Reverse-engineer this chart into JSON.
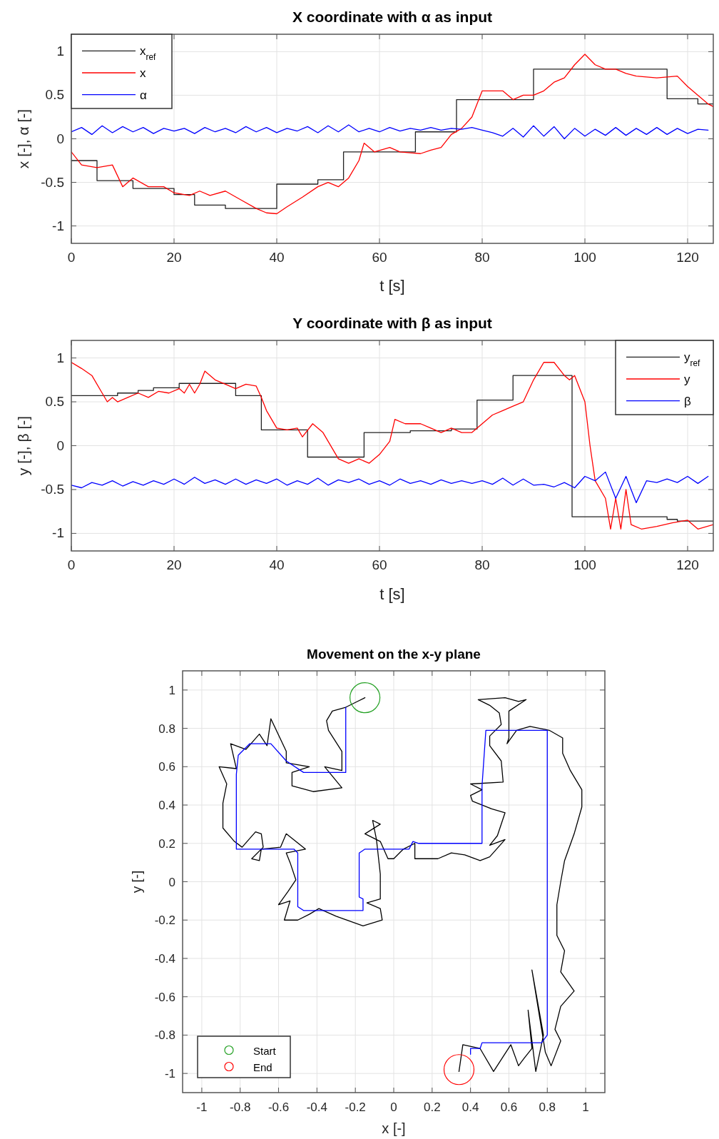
{
  "chart_data": [
    {
      "type": "line",
      "title": "X coordinate with α as input",
      "xlabel": "t [s]",
      "ylabel": "x [-], α [-]",
      "xlim": [
        0,
        125
      ],
      "ylim": [
        -1.2,
        1.2
      ],
      "xticks": [
        0,
        20,
        40,
        60,
        80,
        100,
        120
      ],
      "yticks": [
        -1,
        -0.5,
        0,
        0.5,
        1
      ],
      "grid": true,
      "legend": "top left",
      "series": [
        {
          "name": "x$_{ref}$",
          "type": "step",
          "color": "#222222",
          "x": [
            0,
            5,
            12,
            20,
            24,
            30,
            40,
            48,
            53,
            67,
            75,
            90,
            116,
            122,
            125
          ],
          "values": [
            -0.25,
            -0.48,
            -0.57,
            -0.64,
            -0.76,
            -0.8,
            -0.52,
            -0.47,
            -0.15,
            0.08,
            0.45,
            0.8,
            0.46,
            0.4,
            0.4
          ]
        },
        {
          "name": "x",
          "color": "#ff0000",
          "x": [
            0,
            2,
            5,
            8,
            10,
            12,
            15,
            18,
            20,
            23,
            25,
            27,
            30,
            33,
            36,
            38,
            40,
            42,
            45,
            48,
            50,
            52,
            54,
            56,
            57,
            59,
            62,
            64,
            66,
            68,
            70,
            72,
            74,
            76,
            78,
            80,
            82,
            84,
            86,
            88,
            90,
            92,
            94,
            96,
            98,
            100,
            102,
            104,
            106,
            108,
            110,
            114,
            118,
            120,
            122,
            124,
            125
          ],
          "values": [
            -0.15,
            -0.3,
            -0.33,
            -0.3,
            -0.55,
            -0.45,
            -0.55,
            -0.55,
            -0.62,
            -0.65,
            -0.6,
            -0.65,
            -0.6,
            -0.7,
            -0.8,
            -0.85,
            -0.86,
            -0.78,
            -0.67,
            -0.55,
            -0.5,
            -0.55,
            -0.45,
            -0.25,
            -0.05,
            -0.15,
            -0.1,
            -0.15,
            -0.16,
            -0.17,
            -0.13,
            -0.1,
            0.05,
            0.12,
            0.25,
            0.55,
            0.55,
            0.55,
            0.45,
            0.5,
            0.5,
            0.55,
            0.65,
            0.7,
            0.85,
            0.97,
            0.85,
            0.8,
            0.8,
            0.75,
            0.72,
            0.7,
            0.72,
            0.6,
            0.5,
            0.4,
            0.37
          ]
        },
        {
          "name": "α",
          "color": "#0000ff",
          "x": [
            0,
            2,
            4,
            6,
            8,
            10,
            12,
            14,
            16,
            18,
            20,
            22,
            24,
            26,
            28,
            30,
            32,
            34,
            36,
            38,
            40,
            42,
            44,
            46,
            48,
            50,
            52,
            54,
            56,
            58,
            60,
            62,
            64,
            66,
            68,
            70,
            72,
            74,
            76,
            78,
            80,
            82,
            84,
            86,
            88,
            90,
            92,
            94,
            96,
            98,
            100,
            102,
            104,
            106,
            108,
            110,
            112,
            114,
            116,
            118,
            120,
            122,
            124
          ],
          "values": [
            0.08,
            0.13,
            0.05,
            0.15,
            0.07,
            0.14,
            0.08,
            0.13,
            0.06,
            0.12,
            0.09,
            0.12,
            0.06,
            0.13,
            0.08,
            0.12,
            0.07,
            0.14,
            0.08,
            0.13,
            0.07,
            0.12,
            0.09,
            0.14,
            0.07,
            0.15,
            0.08,
            0.16,
            0.08,
            0.12,
            0.08,
            0.13,
            0.09,
            0.12,
            0.1,
            0.13,
            0.1,
            0.12,
            0.11,
            0.13,
            0.1,
            0.07,
            0.03,
            0.12,
            0.02,
            0.15,
            0.03,
            0.14,
            0.0,
            0.12,
            0.03,
            0.11,
            0.04,
            0.13,
            0.04,
            0.12,
            0.05,
            0.13,
            0.05,
            0.12,
            0.06,
            0.11,
            0.1
          ]
        }
      ]
    },
    {
      "type": "line",
      "title": "Y coordinate with β as input",
      "xlabel": "t [s]",
      "ylabel": "y [-], β [-]",
      "xlim": [
        0,
        125
      ],
      "ylim": [
        -1.2,
        1.2
      ],
      "xticks": [
        0,
        20,
        40,
        60,
        80,
        100,
        120
      ],
      "yticks": [
        -1,
        -0.5,
        0,
        0.5,
        1
      ],
      "grid": true,
      "legend": "top right",
      "series": [
        {
          "name": "y$_{ref}$",
          "type": "step",
          "color": "#222222",
          "x": [
            0,
            9,
            13,
            16,
            21,
            32,
            37,
            46,
            57,
            66,
            74,
            79,
            86,
            97.5,
            116,
            118,
            125
          ],
          "values": [
            0.57,
            0.6,
            0.63,
            0.66,
            0.71,
            0.57,
            0.18,
            -0.13,
            0.15,
            0.17,
            0.19,
            0.52,
            0.8,
            -0.81,
            -0.84,
            -0.86,
            -0.86
          ]
        },
        {
          "name": "y",
          "color": "#ff0000",
          "x": [
            0,
            2,
            4,
            6,
            7,
            8,
            9,
            11,
            13,
            15,
            17,
            19,
            21,
            22,
            23,
            24,
            25,
            26,
            28,
            30,
            32,
            34,
            36,
            37,
            38,
            40,
            42,
            44,
            45,
            47,
            49,
            50,
            52,
            54,
            56,
            58,
            60,
            62,
            63,
            65,
            68,
            70,
            72,
            74,
            76,
            78,
            80,
            82,
            84,
            86,
            88,
            90,
            92,
            94,
            96,
            97,
            98,
            100,
            101,
            102,
            104,
            105,
            106,
            107,
            108,
            109,
            111,
            114,
            117,
            120,
            122,
            125
          ],
          "values": [
            0.95,
            0.88,
            0.8,
            0.6,
            0.5,
            0.55,
            0.5,
            0.55,
            0.6,
            0.55,
            0.62,
            0.6,
            0.65,
            0.6,
            0.7,
            0.6,
            0.7,
            0.85,
            0.75,
            0.7,
            0.65,
            0.7,
            0.68,
            0.55,
            0.4,
            0.2,
            0.18,
            0.2,
            0.1,
            0.25,
            0.15,
            0.05,
            -0.15,
            -0.2,
            -0.15,
            -0.2,
            -0.1,
            0.05,
            0.3,
            0.25,
            0.25,
            0.2,
            0.15,
            0.2,
            0.15,
            0.15,
            0.25,
            0.35,
            0.4,
            0.45,
            0.5,
            0.75,
            0.95,
            0.95,
            0.8,
            0.75,
            0.8,
            0.5,
            0,
            -0.4,
            -0.6,
            -0.95,
            -0.6,
            -0.95,
            -0.5,
            -0.9,
            -0.95,
            -0.92,
            -0.88,
            -0.85,
            -0.95,
            -0.9
          ]
        },
        {
          "name": "β",
          "color": "#0000ff",
          "x": [
            0,
            2,
            4,
            6,
            8,
            10,
            12,
            14,
            16,
            18,
            20,
            22,
            24,
            26,
            28,
            30,
            32,
            34,
            36,
            38,
            40,
            42,
            44,
            46,
            48,
            50,
            52,
            54,
            56,
            58,
            60,
            62,
            64,
            66,
            68,
            70,
            72,
            74,
            76,
            78,
            80,
            82,
            84,
            86,
            88,
            90,
            92,
            94,
            96,
            98,
            100,
            102,
            104,
            106,
            108,
            110,
            112,
            114,
            116,
            118,
            120,
            122,
            124
          ],
          "values": [
            -0.45,
            -0.48,
            -0.42,
            -0.45,
            -0.4,
            -0.46,
            -0.41,
            -0.45,
            -0.4,
            -0.44,
            -0.38,
            -0.44,
            -0.36,
            -0.43,
            -0.39,
            -0.44,
            -0.38,
            -0.44,
            -0.39,
            -0.43,
            -0.38,
            -0.45,
            -0.4,
            -0.44,
            -0.37,
            -0.45,
            -0.39,
            -0.42,
            -0.38,
            -0.44,
            -0.4,
            -0.45,
            -0.38,
            -0.43,
            -0.4,
            -0.44,
            -0.39,
            -0.43,
            -0.4,
            -0.43,
            -0.4,
            -0.44,
            -0.37,
            -0.45,
            -0.38,
            -0.45,
            -0.44,
            -0.47,
            -0.42,
            -0.48,
            -0.35,
            -0.4,
            -0.3,
            -0.6,
            -0.35,
            -0.65,
            -0.4,
            -0.42,
            -0.38,
            -0.42,
            -0.35,
            -0.43,
            -0.35
          ]
        }
      ]
    },
    {
      "type": "line",
      "title": "Movement on the x-y plane",
      "xlabel": "x [-]",
      "ylabel": "y [-]",
      "xlim": [
        -1.1,
        1.1
      ],
      "ylim": [
        -1.1,
        1.1
      ],
      "xticks": [
        -1,
        -0.8,
        -0.6,
        -0.4,
        -0.2,
        0,
        0.2,
        0.4,
        0.6,
        0.8,
        1
      ],
      "yticks": [
        -1,
        -0.8,
        -0.6,
        -0.4,
        -0.2,
        0,
        0.2,
        0.4,
        0.6,
        0.8,
        1
      ],
      "grid": true,
      "legend": "bottom left",
      "series": [
        {
          "color": "#000000",
          "x": [
            -0.15,
            -0.19,
            -0.25,
            -0.32,
            -0.35,
            -0.34,
            -0.27,
            -0.27,
            -0.36,
            -0.27,
            -0.42,
            -0.53,
            -0.53,
            -0.44,
            -0.56,
            -0.56,
            -0.64,
            -0.66,
            -0.7,
            -0.77,
            -0.85,
            -0.82,
            -0.91,
            -0.87,
            -0.89,
            -0.89,
            -0.83,
            -0.79,
            -0.72,
            -0.69,
            -0.68,
            -0.74,
            -0.7,
            -0.69,
            -0.59,
            -0.56,
            -0.46,
            -0.56,
            -0.54,
            -0.51,
            -0.55,
            -0.6,
            -0.54,
            -0.57,
            -0.5,
            -0.44,
            -0.39,
            -0.3,
            -0.16,
            -0.06,
            -0.07,
            -0.14,
            -0.07,
            -0.07,
            -0.09,
            -0.11,
            -0.07,
            -0.15,
            -0.07,
            -0.03,
            0,
            0.05,
            0.11,
            0.11,
            0.23,
            0.3,
            0.37,
            0.45,
            0.5,
            0.58,
            0.5,
            0.54,
            0.58,
            0.51,
            0.41,
            0.4,
            0.46,
            0.4,
            0.57,
            0.56,
            0.5,
            0.5,
            0.56,
            0.55,
            0.5,
            0.44,
            0.58,
            0.65,
            0.69,
            0.6,
            0.6,
            0.59,
            0.64,
            0.71,
            0.81,
            0.88,
            0.88,
            0.92,
            0.98,
            0.98,
            0.94,
            0.89,
            0.87,
            0.85,
            0.85,
            0.89,
            0.87,
            0.94,
            0.87,
            0.84,
            0.87,
            0.82,
            0.79,
            0.72,
            0.78,
            0.74,
            0.7,
            0.72,
            0.68,
            0.65,
            0.61,
            0.52,
            0.45,
            0.36,
            0.34
          ],
          "values": [
            0.96,
            0.94,
            0.91,
            0.89,
            0.84,
            0.79,
            0.68,
            0.58,
            0.6,
            0.49,
            0.47,
            0.5,
            0.57,
            0.6,
            0.62,
            0.68,
            0.85,
            0.71,
            0.77,
            0.69,
            0.72,
            0.59,
            0.6,
            0.51,
            0.41,
            0.28,
            0.21,
            0.18,
            0.26,
            0.25,
            0.18,
            0.12,
            0.11,
            0.17,
            0.18,
            0.25,
            0.17,
            0.15,
            0.1,
            0.01,
            -0.05,
            -0.12,
            -0.1,
            -0.2,
            -0.2,
            -0.17,
            -0.14,
            -0.18,
            -0.23,
            -0.2,
            -0.14,
            -0.11,
            -0.09,
            0.04,
            0.22,
            0.32,
            0.3,
            0.25,
            0.21,
            0.12,
            0.12,
            0.17,
            0.2,
            0.12,
            0.12,
            0.15,
            0.14,
            0.11,
            0.13,
            0.22,
            0.19,
            0.24,
            0.36,
            0.38,
            0.42,
            0.45,
            0.48,
            0.51,
            0.52,
            0.63,
            0.71,
            0.76,
            0.82,
            0.88,
            0.92,
            0.95,
            0.96,
            0.94,
            0.95,
            0.89,
            0.75,
            0.72,
            0.79,
            0.81,
            0.79,
            0.75,
            0.67,
            0.58,
            0.48,
            0.39,
            0.25,
            0.11,
            0,
            -0.12,
            -0.28,
            -0.36,
            -0.47,
            -0.57,
            -0.65,
            -0.77,
            -0.83,
            -0.96,
            -0.89,
            -0.46,
            -0.8,
            -0.99,
            -0.67,
            -0.87,
            -0.92,
            -0.96,
            -0.85,
            -0.99,
            -0.87,
            -0.85,
            -0.99
          ]
        },
        {
          "color": "#0000ff",
          "x": [
            -0.25,
            -0.25,
            -0.47,
            -0.56,
            -0.64,
            -0.75,
            -0.81,
            -0.82,
            -0.82,
            -0.52,
            -0.5,
            -0.5,
            -0.47,
            -0.16,
            -0.16,
            -0.18,
            -0.18,
            -0.15,
            0.08,
            0.1,
            0.13,
            0.46,
            0.46,
            0.48,
            0.8,
            0.8,
            0.77,
            0.46,
            0.45,
            0.4,
            0.4
          ],
          "values": [
            0.91,
            0.57,
            0.57,
            0.63,
            0.72,
            0.72,
            0.66,
            0.56,
            0.17,
            0.17,
            0.15,
            -0.13,
            -0.15,
            -0.15,
            -0.09,
            -0.08,
            0.15,
            0.17,
            0.17,
            0.21,
            0.2,
            0.2,
            0.5,
            0.79,
            0.79,
            -0.8,
            -0.84,
            -0.84,
            -0.87,
            -0.87,
            -0.9
          ]
        },
        {
          "name": "Start",
          "type": "scatter",
          "marker": "circle",
          "color": "#22a022",
          "x": [
            -0.15
          ],
          "values": [
            0.96
          ]
        },
        {
          "name": "End",
          "type": "scatter",
          "marker": "circle",
          "color": "#ff0000",
          "x": [
            0.34
          ],
          "values": [
            -0.98
          ]
        }
      ]
    }
  ]
}
